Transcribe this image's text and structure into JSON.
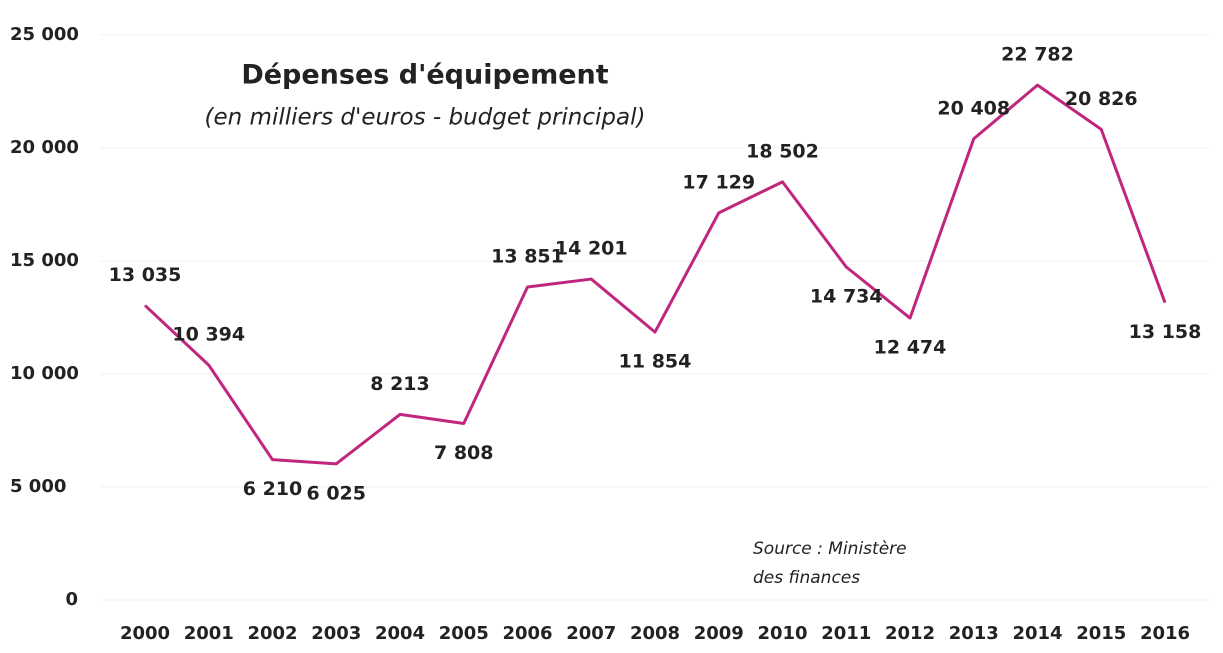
{
  "chart_data": {
    "type": "line",
    "title": "Dépenses d'équipement",
    "subtitle": "(en milliers d'euros - budget principal)",
    "source": [
      "Source : Ministère",
      "des finances"
    ],
    "categories": [
      "2000",
      "2001",
      "2002",
      "2003",
      "2004",
      "2005",
      "2006",
      "2007",
      "2008",
      "2009",
      "2010",
      "2011",
      "2012",
      "2013",
      "2014",
      "2015",
      "2016"
    ],
    "series": [
      {
        "color": "#c0267e",
        "values": [
          13035,
          10394,
          6210,
          6025,
          8213,
          7808,
          13851,
          14201,
          11854,
          17129,
          18502,
          14734,
          12474,
          20408,
          22782,
          20826,
          13158
        ],
        "value_labels": [
          "13 035",
          "10 394",
          "6 210",
          "6 025",
          "8 213",
          "7 808",
          "13 851",
          "14 201",
          "11 854",
          "17 129",
          "18 502",
          "14 734",
          "12 474",
          "20 408",
          "22 782",
          "20 826",
          "13 158"
        ]
      }
    ],
    "ylim": [
      0,
      25000
    ],
    "yticks": [
      0,
      {
        "value": 5000,
        "label": "5 000"
      },
      {
        "value": 10000,
        "label": "10 000"
      },
      {
        "value": 15000,
        "label": "15 000"
      },
      {
        "value": 20000,
        "label": "20 000"
      },
      {
        "value": 25000,
        "label": "25 000"
      }
    ],
    "grid": true
  }
}
